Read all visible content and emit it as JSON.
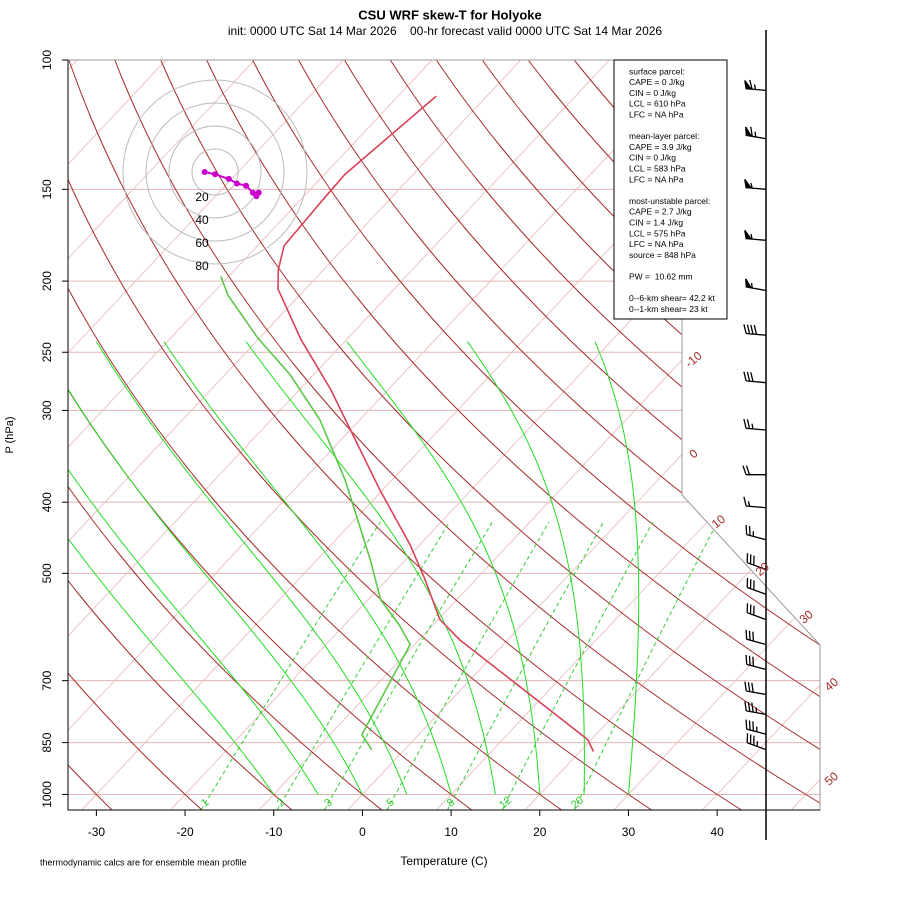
{
  "chart_data": {
    "type": "skewt",
    "title": "CSU WRF skew-T for Holyoke",
    "subtitle": "init: 0000 UTC Sat 14 Mar 2026    00-hr forecast valid 0000 UTC Sat 14 Mar 2026",
    "xlabel": "Temperature (C)",
    "ylabel": "P (hPa)",
    "xlim": [
      -33.2,
      51.6
    ],
    "xticks": [
      -30,
      -20,
      -10,
      0,
      10,
      20,
      30,
      40
    ],
    "ylim": [
      1050,
      100
    ],
    "yticks": [
      100,
      150,
      200,
      250,
      300,
      400,
      500,
      700,
      850,
      1000
    ],
    "log_y": true,
    "isotherms": [
      -110,
      -100,
      -90,
      -80,
      -70,
      -60,
      -50,
      -40,
      -30,
      -20,
      -10,
      0,
      10,
      20,
      30,
      40,
      50
    ],
    "isotherm_labels": [
      -10,
      0,
      10,
      20,
      30,
      40,
      50
    ],
    "dry_adiabats": [
      -40,
      -30,
      -20,
      -10,
      0,
      10,
      20,
      30,
      40,
      50,
      60,
      70,
      80,
      90,
      100,
      110,
      120,
      130,
      140,
      150,
      160,
      170
    ],
    "moist_adiabats": [
      -10,
      -5,
      0,
      5,
      10,
      15,
      20,
      25,
      30
    ],
    "mixing_ratios": [
      1,
      2,
      3,
      5,
      8,
      12,
      20
    ],
    "series": [
      {
        "color": "#d9435a",
        "pressure": [
          874,
          842,
          616,
          578,
          510,
          457,
          385,
          281,
          240,
          205,
          193,
          179,
          155,
          143,
          112
        ],
        "values": [
          21.5,
          19.6,
          -5.4,
          -9.8,
          -15.7,
          -21.1,
          -30.3,
          -46.5,
          -55.2,
          -63.1,
          -65.1,
          -67,
          -67.5,
          -67.7,
          -65.7
        ]
      },
      {
        "color": "#5cc84a",
        "pressure": [
          869,
          829,
          743,
          625,
          588,
          543,
          479,
          373,
          309,
          268,
          239,
          209,
          197
        ],
        "values": [
          -3.7,
          -6.4,
          -8.0,
          -10.5,
          -13.8,
          -18.6,
          -24.0,
          -35.3,
          -44.5,
          -52.7,
          -60.2,
          -68.1,
          -70.9
        ]
      }
    ],
    "hodograph": {
      "rings": [
        20,
        40,
        60,
        80
      ],
      "color": "#cc00cc",
      "u": [
        -9,
        0,
        12,
        19,
        27,
        33,
        36,
        38
      ],
      "v": [
        0,
        -2,
        -6,
        -10,
        -12,
        -18,
        -21,
        -18
      ]
    },
    "wind": {
      "pressure": [
        110,
        128,
        150,
        176,
        206,
        237,
        275,
        319,
        367,
        407,
        450,
        494,
        534,
        578,
        625,
        676,
        731,
        778,
        828,
        869
      ],
      "speed": [
        65,
        65,
        55,
        55,
        55,
        40,
        30,
        25,
        20,
        15,
        25,
        30,
        30,
        30,
        30,
        30,
        30,
        35,
        35,
        35
      ],
      "direction": [
        275,
        280,
        275,
        275,
        280,
        275,
        275,
        275,
        270,
        275,
        285,
        290,
        290,
        290,
        285,
        285,
        280,
        280,
        285,
        290
      ]
    },
    "info_box": [
      [
        "surface parcel:",
        "CAPE = 0 J/kg",
        "CIN = 0 J/kg",
        "LCL = 610 hPa",
        "LFC = NA hPa"
      ],
      [
        "mean-layer parcel:",
        "CAPE = 3.9 J/kg",
        "CIN = 0 J/kg",
        "LCL = 583 hPa",
        "LFC = NA hPa"
      ],
      [
        "most-unstable parcel:",
        "CAPE = 2.7 J/kg",
        "CIN = 1.4 J/kg",
        "LCL = 575 hPa",
        "LFC = NA hPa",
        "source = 848 hPa"
      ],
      [
        "PW =  10.62 mm"
      ],
      [
        "0--6-km shear= 42.2 kt",
        "0--1-km shear= 23 kt"
      ]
    ],
    "footnote": "thermodynamic calcs are for ensemble mean profile"
  }
}
